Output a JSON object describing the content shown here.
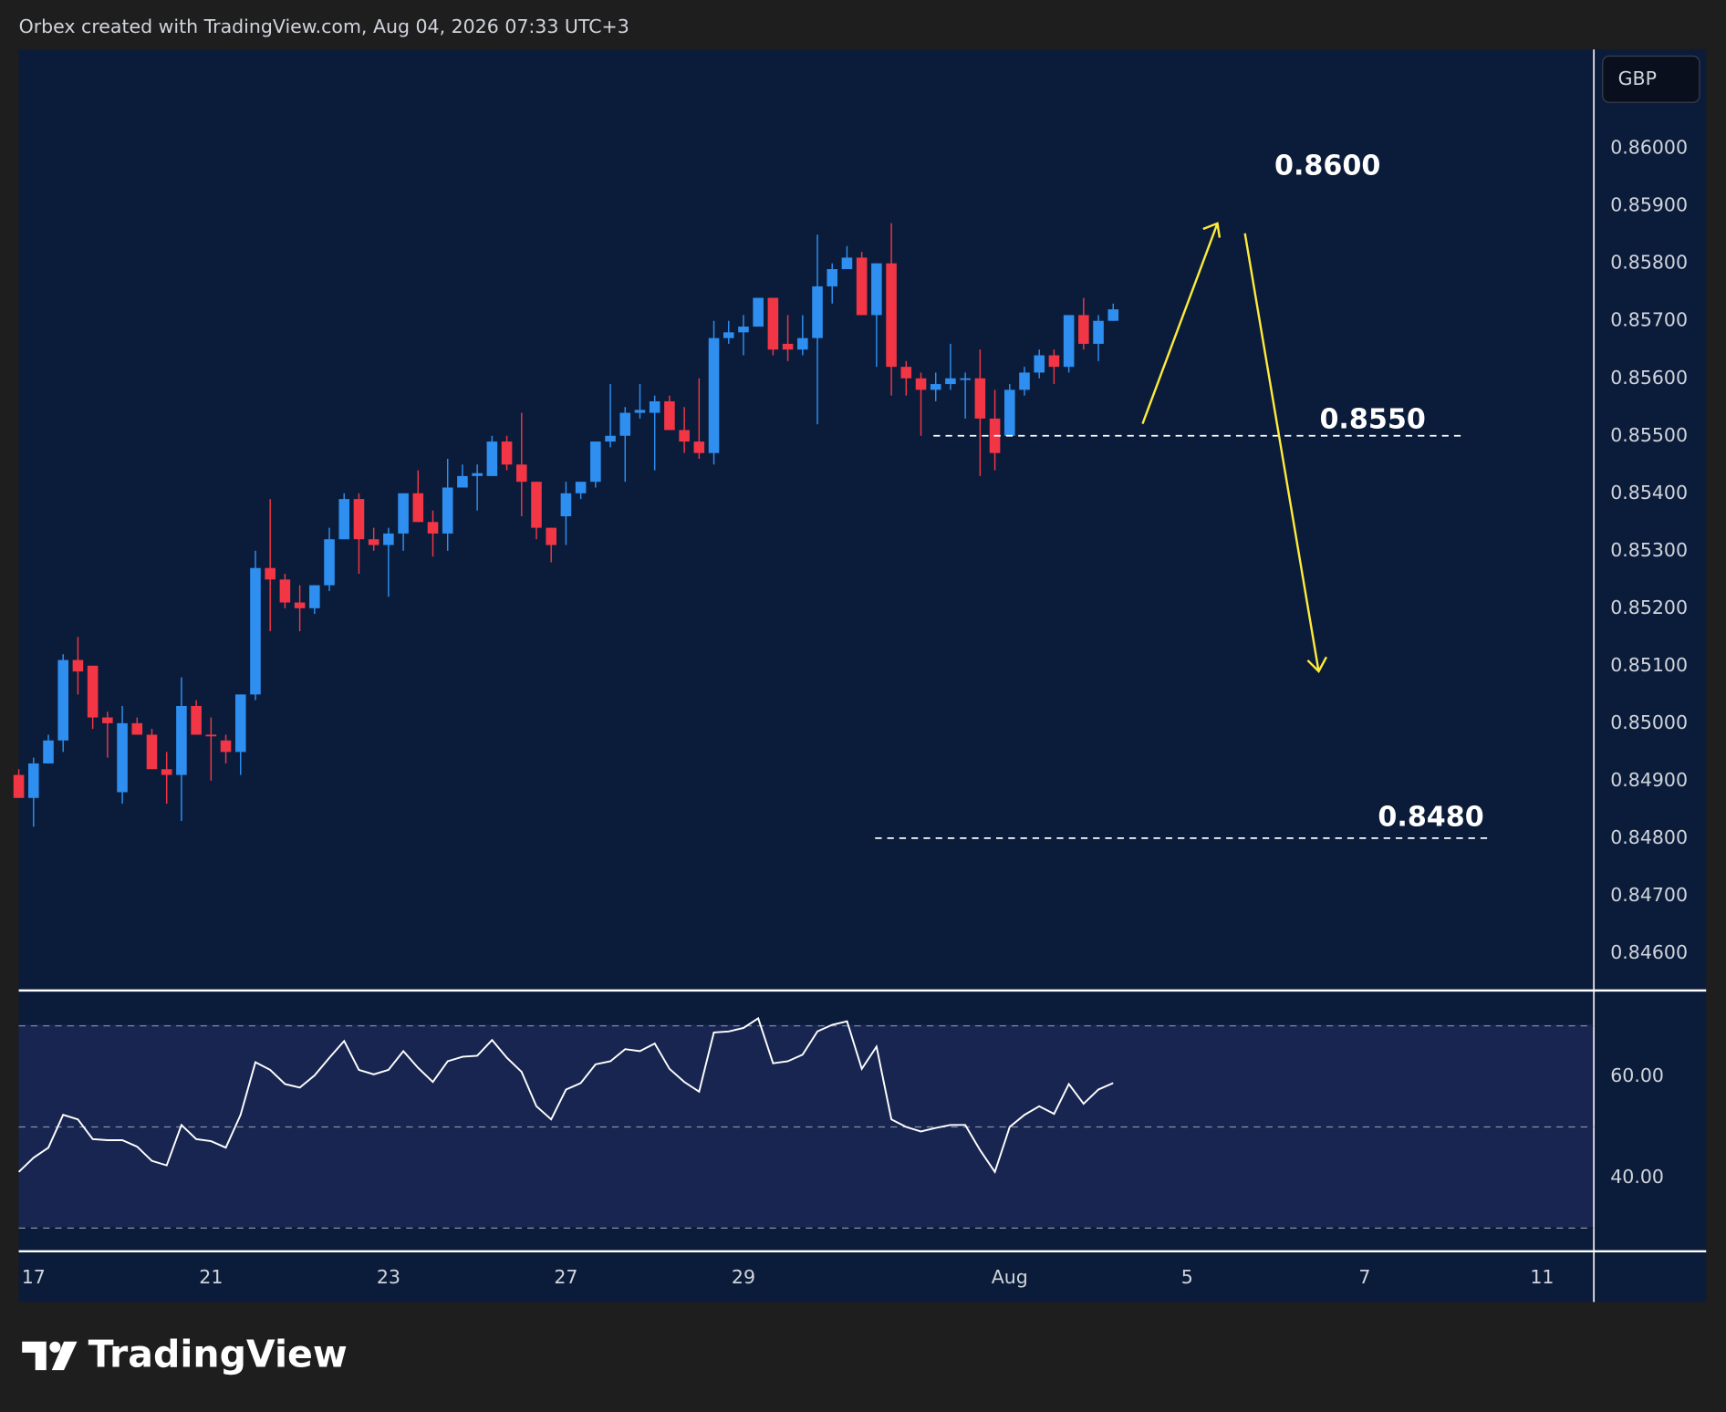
{
  "header": "Orbex created with TradingView.com, Aug 04, 2026 07:33 UTC+3",
  "currency": "GBP",
  "brand": "TradingView",
  "chart_data": [
    {
      "type": "candlestick",
      "up_color": "#2e8ff0",
      "down_color": "#f23645",
      "xlim": [
        0,
        106.5
      ],
      "xticks": [
        {
          "value": 1,
          "label": "17"
        },
        {
          "value": 13,
          "label": "21"
        },
        {
          "value": 25,
          "label": "23"
        },
        {
          "value": 37,
          "label": "27"
        },
        {
          "value": 49,
          "label": "29"
        },
        {
          "value": 67,
          "label": "Aug"
        },
        {
          "value": 79,
          "label": "5"
        },
        {
          "value": 91,
          "label": "7"
        },
        {
          "value": 103,
          "label": "11"
        }
      ],
      "ylim": [
        0.84535,
        0.86172
      ],
      "yticks": [
        {
          "value": 0.86,
          "label": "0.86000"
        },
        {
          "value": 0.859,
          "label": "0.85900"
        },
        {
          "value": 0.858,
          "label": "0.85800"
        },
        {
          "value": 0.857,
          "label": "0.85700"
        },
        {
          "value": 0.856,
          "label": "0.85600"
        },
        {
          "value": 0.855,
          "label": "0.85500"
        },
        {
          "value": 0.854,
          "label": "0.85400"
        },
        {
          "value": 0.853,
          "label": "0.85300"
        },
        {
          "value": 0.852,
          "label": "0.85200"
        },
        {
          "value": 0.851,
          "label": "0.85100"
        },
        {
          "value": 0.85,
          "label": "0.85000"
        },
        {
          "value": 0.849,
          "label": "0.84900"
        },
        {
          "value": 0.848,
          "label": "0.84800"
        },
        {
          "value": 0.847,
          "label": "0.84700"
        },
        {
          "value": 0.846,
          "label": "0.84600"
        }
      ],
      "grid": false,
      "open": [
        0.8491,
        0.8487,
        0.8493,
        0.8497,
        0.8511,
        0.851,
        0.8501,
        0.8488,
        0.85,
        0.8498,
        0.8492,
        0.8491,
        0.8503,
        0.8498,
        0.8497,
        0.8495,
        0.8505,
        0.8527,
        0.8525,
        0.8521,
        0.852,
        0.8524,
        0.8532,
        0.8539,
        0.8532,
        0.8531,
        0.8533,
        0.854,
        0.8535,
        0.8533,
        0.8541,
        0.8543,
        0.8543,
        0.8549,
        0.8545,
        0.8542,
        0.8534,
        0.8536,
        0.854,
        0.8542,
        0.8549,
        0.855,
        0.8554,
        0.8554,
        0.8556,
        0.8551,
        0.8549,
        0.8547,
        0.8567,
        0.8568,
        0.8569,
        0.8574,
        0.8566,
        0.8565,
        0.8567,
        0.8576,
        0.8579,
        0.8581,
        0.8571,
        0.858,
        0.8562,
        0.856,
        0.8558,
        0.8559,
        0.85598,
        0.856,
        0.8553,
        0.855,
        0.8558,
        0.8561,
        0.8564,
        0.8562,
        0.8571,
        0.8566,
        0.857
      ],
      "high": [
        0.8492,
        0.8494,
        0.8498,
        0.8512,
        0.8515,
        0.851,
        0.8502,
        0.8503,
        0.8501,
        0.8499,
        0.8495,
        0.8508,
        0.8504,
        0.8501,
        0.8498,
        0.8505,
        0.853,
        0.8539,
        0.8526,
        0.8524,
        0.8524,
        0.8534,
        0.854,
        0.854,
        0.8534,
        0.8534,
        0.854,
        0.8544,
        0.8537,
        0.8546,
        0.8545,
        0.8545,
        0.855,
        0.855,
        0.8554,
        0.8542,
        0.8534,
        0.8542,
        0.8542,
        0.8549,
        0.8559,
        0.8555,
        0.8559,
        0.8557,
        0.8557,
        0.8555,
        0.856,
        0.857,
        0.857,
        0.8571,
        0.8574,
        0.8574,
        0.8571,
        0.8571,
        0.8585,
        0.858,
        0.8583,
        0.8582,
        0.858,
        0.8587,
        0.8563,
        0.8561,
        0.8561,
        0.8566,
        0.8561,
        0.8565,
        0.8558,
        0.8559,
        0.8562,
        0.8565,
        0.8565,
        0.8571,
        0.8574,
        0.8571,
        0.8573
      ],
      "low": [
        0.8487,
        0.8482,
        0.8493,
        0.8495,
        0.8505,
        0.8499,
        0.8494,
        0.8486,
        0.8498,
        0.8492,
        0.8486,
        0.8483,
        0.8498,
        0.849,
        0.8493,
        0.8491,
        0.8504,
        0.8516,
        0.852,
        0.8516,
        0.8519,
        0.8523,
        0.8532,
        0.8526,
        0.853,
        0.8522,
        0.853,
        0.8535,
        0.8529,
        0.853,
        0.8541,
        0.8537,
        0.8543,
        0.8544,
        0.8536,
        0.8532,
        0.8528,
        0.8531,
        0.8539,
        0.8541,
        0.8548,
        0.8542,
        0.8553,
        0.8544,
        0.8551,
        0.8547,
        0.8546,
        0.8545,
        0.8566,
        0.8564,
        0.8569,
        0.8564,
        0.8563,
        0.8564,
        0.8552,
        0.8573,
        0.8579,
        0.8571,
        0.8562,
        0.8557,
        0.8557,
        0.855,
        0.8556,
        0.8558,
        0.8553,
        0.8543,
        0.8544,
        0.855,
        0.8557,
        0.856,
        0.8559,
        0.8561,
        0.8565,
        0.8563,
        0.857
      ],
      "close": [
        0.8487,
        0.8493,
        0.8497,
        0.8511,
        0.8509,
        0.8501,
        0.85,
        0.85,
        0.8498,
        0.8492,
        0.8491,
        0.8503,
        0.8498,
        0.84978,
        0.8495,
        0.8505,
        0.8527,
        0.8525,
        0.8521,
        0.852,
        0.8524,
        0.8532,
        0.8539,
        0.8532,
        0.8531,
        0.8533,
        0.854,
        0.8535,
        0.8533,
        0.8541,
        0.8543,
        0.85435,
        0.8549,
        0.8545,
        0.8542,
        0.8534,
        0.8531,
        0.854,
        0.8542,
        0.8549,
        0.855,
        0.8554,
        0.85545,
        0.8556,
        0.8551,
        0.8549,
        0.8547,
        0.8567,
        0.8568,
        0.8569,
        0.8574,
        0.8565,
        0.8565,
        0.8567,
        0.8576,
        0.8579,
        0.8581,
        0.8571,
        0.858,
        0.8562,
        0.856,
        0.8558,
        0.8559,
        0.856,
        0.856,
        0.8553,
        0.8547,
        0.8558,
        0.8561,
        0.8564,
        0.8562,
        0.8571,
        0.8566,
        0.857,
        0.8572
      ],
      "annotations": [
        {
          "label": "0.8600",
          "value": 0.86
        },
        {
          "label": "0.8550",
          "value": 0.855,
          "dashed_line": true
        },
        {
          "label": "0.8480",
          "value": 0.848,
          "dashed_line": true
        }
      ]
    },
    {
      "type": "line",
      "color": "#ffffff",
      "xlim": [
        0,
        106.5
      ],
      "ylim": [
        25.4,
        77
      ],
      "yticks": [
        {
          "value": 40,
          "label": "40.00"
        },
        {
          "value": 60,
          "label": "60.00"
        }
      ],
      "levels": [
        70,
        50,
        30
      ],
      "values": [
        41.1,
        43.9,
        45.9,
        52.4,
        51.5,
        47.6,
        47.4,
        47.4,
        46.1,
        43.3,
        42.4,
        50.4,
        47.6,
        47.2,
        45.9,
        52.4,
        62.8,
        61.3,
        58.5,
        57.8,
        60.2,
        63.7,
        67.0,
        61.3,
        60.4,
        61.3,
        65.0,
        61.7,
        58.9,
        63.0,
        63.9,
        64.1,
        67.2,
        63.7,
        60.9,
        54.1,
        51.5,
        57.4,
        58.7,
        62.4,
        63.0,
        65.4,
        65.0,
        66.5,
        61.5,
        58.9,
        57.0,
        68.7,
        68.9,
        69.6,
        71.5,
        62.6,
        63.0,
        64.3,
        68.9,
        70.2,
        70.9,
        61.5,
        65.9,
        51.5,
        50.0,
        49.1,
        49.8,
        50.4,
        50.4,
        45.4,
        41.1,
        50.0,
        52.4,
        54.1,
        52.6,
        58.5,
        54.6,
        57.4,
        58.7
      ]
    }
  ]
}
